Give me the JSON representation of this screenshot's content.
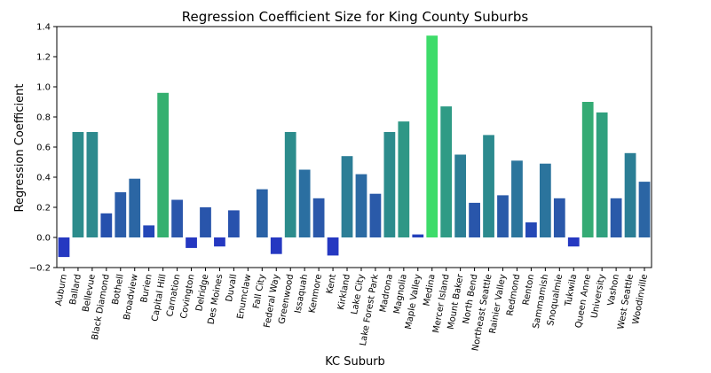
{
  "chart_data": {
    "type": "bar",
    "title": "Regression Coefficient Size for King County Suburbs",
    "xlabel": "KC Suburb",
    "ylabel": "Regression Coefficient",
    "ylim": [
      -0.2,
      1.4
    ],
    "yticks": [
      "−0.2",
      "0.0",
      "0.2",
      "0.4",
      "0.6",
      "0.8",
      "1.0",
      "1.2",
      "1.4"
    ],
    "yticks_values": [
      -0.2,
      0.0,
      0.2,
      0.4,
      0.6,
      0.8,
      1.0,
      1.2,
      1.4
    ],
    "grid": false,
    "legend": "none",
    "colormap": "winter-to-green (value-scaled)",
    "categories": [
      "Auburn",
      "Ballard",
      "Bellevue",
      "Black Diamond",
      "Bothell",
      "Broadview",
      "Burien",
      "Capital Hill",
      "Carnation",
      "Covington",
      "Delridge",
      "Des Moines",
      "Duvall",
      "Enumclaw",
      "Fall City",
      "Federal Way",
      "Greenwood",
      "Issaquah",
      "Kenmore",
      "Kent",
      "Kirkland",
      "Lake City",
      "Lake Forest Park",
      "Madrona",
      "Magnolia",
      "Maple Valley",
      "Medina",
      "Mercer Island",
      "Mount Baker",
      "North Bend",
      "Northeast Seattle",
      "Rainier Valley",
      "Redmond",
      "Renton",
      "Sammamish",
      "Snoqualmie",
      "Tukwila",
      "Queen Anne",
      "University",
      "Vashon",
      "West Seattle",
      "Woodinville"
    ],
    "values": [
      -0.13,
      0.7,
      0.7,
      0.16,
      0.3,
      0.39,
      0.08,
      0.96,
      0.25,
      -0.07,
      0.2,
      -0.06,
      0.18,
      0.0,
      0.32,
      -0.11,
      0.7,
      0.45,
      0.26,
      -0.12,
      0.54,
      0.42,
      0.29,
      0.7,
      0.77,
      0.02,
      1.34,
      0.87,
      0.55,
      0.23,
      0.68,
      0.28,
      0.51,
      0.1,
      0.49,
      0.26,
      -0.06,
      0.9,
      0.83,
      0.26,
      0.56,
      0.37
    ],
    "colors": [
      "#2538c1",
      "#2c8c8c",
      "#2d8a8e",
      "#2550ad",
      "#2a5da9",
      "#2b66a4",
      "#2447b8",
      "#35b070",
      "#2a56ab",
      "#2538c1",
      "#2955ab",
      "#2538c1",
      "#2852ad",
      "#2540ba",
      "#2a62a6",
      "#2538c1",
      "#2c8c8c",
      "#2b6fa1",
      "#2a58aa",
      "#2538c1",
      "#2c7e96",
      "#2b6aa3",
      "#2a5aa9",
      "#2c8c8c",
      "#2f9786",
      "#2440bb",
      "#3edc6a",
      "#2f9b85",
      "#2c7e95",
      "#2956ab",
      "#2c8a8e",
      "#2a5ba9",
      "#2b759c",
      "#2549b6",
      "#2b749d",
      "#2a58aa",
      "#2538c1",
      "#34ab74",
      "#30a07e",
      "#2a5aa9",
      "#2b7e95",
      "#2b65a4"
    ]
  }
}
